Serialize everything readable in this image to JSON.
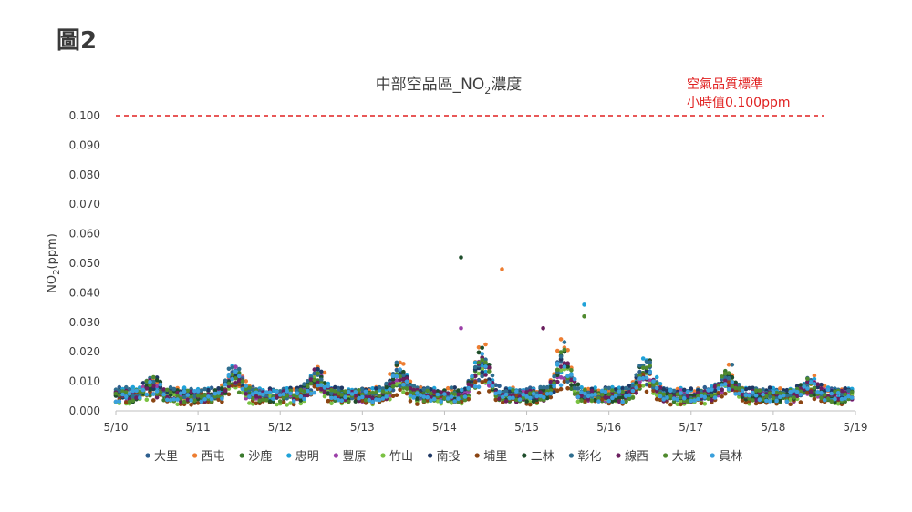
{
  "figure_label": "圖2",
  "chart_data": {
    "type": "scatter",
    "title": "中部空品區_NO",
    "title_sub": "2",
    "title_suffix": "濃度",
    "ylabel": "NO",
    "ylabel_sub": "2",
    "ylabel_suffix": "(ppm)",
    "xlabel": "",
    "x_ticks": [
      "5/10",
      "5/11",
      "5/12",
      "5/13",
      "5/14",
      "5/15",
      "5/16",
      "5/17",
      "5/18",
      "5/19"
    ],
    "y_ticks": [
      "0.000",
      "0.010",
      "0.020",
      "0.030",
      "0.040",
      "0.050",
      "0.060",
      "0.070",
      "0.080",
      "0.090",
      "0.100"
    ],
    "ylim": [
      0,
      0.1
    ],
    "xlim_days": [
      10,
      19
    ],
    "grid": false,
    "legend_position": "bottom",
    "standard_line": {
      "value": 0.1,
      "style": "dashed",
      "color": "#e02020",
      "label_line1": "空氣品質標準",
      "label_line2": "小時值0.100ppm"
    },
    "series": [
      {
        "name": "大里",
        "color": "#2e5f8f",
        "base": 0.006,
        "amp": 0.006,
        "peak": 0
      },
      {
        "name": "西屯",
        "color": "#ed7d31",
        "base": 0.006,
        "amp": 0.008,
        "peak": 0.048
      },
      {
        "name": "沙鹿",
        "color": "#3b7a2e",
        "base": 0.005,
        "amp": 0.006,
        "peak": 0
      },
      {
        "name": "忠明",
        "color": "#1fa2d8",
        "base": 0.006,
        "amp": 0.007,
        "peak": 0.036
      },
      {
        "name": "豐原",
        "color": "#9b3fa8",
        "base": 0.005,
        "amp": 0.006,
        "peak": 0.028
      },
      {
        "name": "竹山",
        "color": "#7ac142",
        "base": 0.004,
        "amp": 0.005,
        "peak": 0
      },
      {
        "name": "南投",
        "color": "#1f3864",
        "base": 0.006,
        "amp": 0.006,
        "peak": 0
      },
      {
        "name": "埔里",
        "color": "#8b4513",
        "base": 0.004,
        "amp": 0.004,
        "peak": 0
      },
      {
        "name": "二林",
        "color": "#1e4d2b",
        "base": 0.005,
        "amp": 0.008,
        "peak": 0.052
      },
      {
        "name": "彰化",
        "color": "#2f6e8f",
        "base": 0.006,
        "amp": 0.007,
        "peak": 0
      },
      {
        "name": "線西",
        "color": "#6a1f5e",
        "base": 0.005,
        "amp": 0.007,
        "peak": 0.028
      },
      {
        "name": "大城",
        "color": "#4f8a2e",
        "base": 0.005,
        "amp": 0.007,
        "peak": 0.032
      },
      {
        "name": "員林",
        "color": "#3aa0dc",
        "base": 0.005,
        "amp": 0.006,
        "peak": 0
      }
    ]
  }
}
